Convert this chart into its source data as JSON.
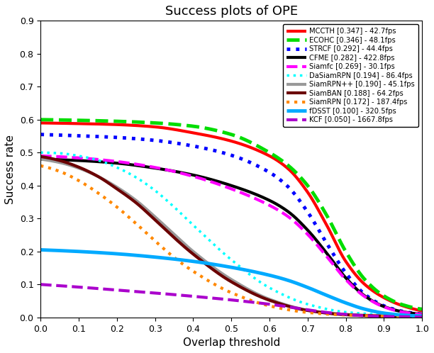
{
  "title": "Success plots of OPE",
  "xlabel": "Overlap threshold",
  "ylabel": "Success rate",
  "xlim": [
    0,
    1
  ],
  "ylim": [
    0,
    0.9
  ],
  "xticks": [
    0,
    0.1,
    0.2,
    0.3,
    0.4,
    0.5,
    0.6,
    0.7,
    0.8,
    0.9,
    1.0
  ],
  "yticks": [
    0,
    0.1,
    0.2,
    0.3,
    0.4,
    0.5,
    0.6,
    0.7,
    0.8,
    0.9
  ],
  "curves": [
    {
      "label": "MCCTH [0.347] - 42.7fps",
      "color": "#ff0000",
      "linestyle": "-",
      "linewidth": 3.0,
      "points_x": [
        0.0,
        0.1,
        0.2,
        0.3,
        0.4,
        0.5,
        0.6,
        0.65,
        0.7,
        0.75,
        0.8,
        0.85,
        0.9,
        0.95,
        1.0
      ],
      "points_y": [
        0.59,
        0.588,
        0.585,
        0.578,
        0.56,
        0.535,
        0.49,
        0.45,
        0.38,
        0.28,
        0.17,
        0.1,
        0.06,
        0.035,
        0.02
      ]
    },
    {
      "label": "ECOHC [0.346] - 48.1fps",
      "color": "#00dd00",
      "linestyle": "--",
      "linewidth": 3.5,
      "points_x": [
        0.0,
        0.1,
        0.2,
        0.3,
        0.4,
        0.5,
        0.6,
        0.65,
        0.7,
        0.75,
        0.8,
        0.85,
        0.9,
        0.95,
        1.0
      ],
      "points_y": [
        0.6,
        0.598,
        0.595,
        0.59,
        0.58,
        0.555,
        0.5,
        0.46,
        0.4,
        0.31,
        0.2,
        0.115,
        0.065,
        0.038,
        0.025
      ]
    },
    {
      "label": "STRCF [0.292] - 44.4fps",
      "color": "#0000ff",
      "linestyle": ":",
      "linewidth": 3.5,
      "points_x": [
        0.0,
        0.1,
        0.2,
        0.3,
        0.4,
        0.5,
        0.6,
        0.65,
        0.7,
        0.75,
        0.8,
        0.85,
        0.9,
        0.95,
        1.0
      ],
      "points_y": [
        0.555,
        0.551,
        0.546,
        0.537,
        0.52,
        0.492,
        0.44,
        0.395,
        0.32,
        0.225,
        0.135,
        0.07,
        0.035,
        0.018,
        0.01
      ]
    },
    {
      "label": "CFME [0.282] - 422.8fps",
      "color": "#000000",
      "linestyle": "-",
      "linewidth": 3.0,
      "points_x": [
        0.0,
        0.1,
        0.2,
        0.3,
        0.4,
        0.5,
        0.6,
        0.65,
        0.7,
        0.75,
        0.8,
        0.85,
        0.9,
        0.95,
        1.0
      ],
      "points_y": [
        0.48,
        0.476,
        0.468,
        0.453,
        0.432,
        0.4,
        0.355,
        0.32,
        0.265,
        0.195,
        0.12,
        0.065,
        0.033,
        0.017,
        0.01
      ]
    },
    {
      "label": "Siamfc [0.269] - 30.1fps",
      "color": "#ff00ff",
      "linestyle": "--",
      "linewidth": 3.0,
      "points_x": [
        0.0,
        0.1,
        0.2,
        0.3,
        0.4,
        0.5,
        0.6,
        0.65,
        0.7,
        0.75,
        0.8,
        0.85,
        0.9,
        0.95,
        1.0
      ],
      "points_y": [
        0.49,
        0.484,
        0.473,
        0.455,
        0.428,
        0.39,
        0.34,
        0.305,
        0.252,
        0.185,
        0.115,
        0.063,
        0.032,
        0.016,
        0.009
      ]
    },
    {
      "label": "DaSiamRPN [0.194] - 86.4fps",
      "color": "#00ffff",
      "linestyle": ":",
      "linewidth": 2.5,
      "points_x": [
        0.0,
        0.05,
        0.1,
        0.15,
        0.2,
        0.25,
        0.3,
        0.35,
        0.4,
        0.5,
        0.6,
        0.7,
        0.8,
        0.9,
        1.0
      ],
      "points_y": [
        0.5,
        0.498,
        0.49,
        0.477,
        0.455,
        0.425,
        0.385,
        0.335,
        0.28,
        0.175,
        0.09,
        0.04,
        0.016,
        0.008,
        0.005
      ]
    },
    {
      "label": "SiamRPN++ [0.190] - 45.1fps",
      "color": "#999999",
      "linestyle": "-",
      "linewidth": 3.0,
      "points_x": [
        0.0,
        0.05,
        0.1,
        0.15,
        0.2,
        0.25,
        0.3,
        0.35,
        0.4,
        0.5,
        0.6,
        0.7,
        0.8,
        0.9,
        1.0
      ],
      "points_y": [
        0.48,
        0.47,
        0.453,
        0.428,
        0.395,
        0.355,
        0.305,
        0.252,
        0.2,
        0.115,
        0.055,
        0.022,
        0.009,
        0.005,
        0.003
      ]
    },
    {
      "label": "SiamBAN [0.188] - 64.2fps",
      "color": "#6b0000",
      "linestyle": "-",
      "linewidth": 3.0,
      "points_x": [
        0.0,
        0.05,
        0.1,
        0.15,
        0.2,
        0.25,
        0.3,
        0.35,
        0.4,
        0.5,
        0.6,
        0.7,
        0.8,
        0.9,
        1.0
      ],
      "points_y": [
        0.488,
        0.476,
        0.456,
        0.428,
        0.39,
        0.348,
        0.296,
        0.242,
        0.192,
        0.108,
        0.052,
        0.021,
        0.008,
        0.004,
        0.002
      ]
    },
    {
      "label": "SiamRPN [0.172] - 187.4fps",
      "color": "#ff8800",
      "linestyle": ":",
      "linewidth": 3.0,
      "points_x": [
        0.0,
        0.05,
        0.1,
        0.15,
        0.2,
        0.25,
        0.3,
        0.35,
        0.4,
        0.5,
        0.6,
        0.7,
        0.8,
        0.9,
        1.0
      ],
      "points_y": [
        0.46,
        0.443,
        0.415,
        0.378,
        0.335,
        0.285,
        0.232,
        0.182,
        0.14,
        0.075,
        0.035,
        0.015,
        0.007,
        0.004,
        0.002
      ]
    },
    {
      "label": "fDSST [0.100] - 320.5fps",
      "color": "#00aaff",
      "linestyle": "-",
      "linewidth": 3.5,
      "points_x": [
        0.0,
        0.1,
        0.2,
        0.3,
        0.4,
        0.5,
        0.6,
        0.65,
        0.7,
        0.75,
        0.8,
        0.85,
        0.9,
        0.95,
        1.0
      ],
      "points_y": [
        0.205,
        0.2,
        0.193,
        0.183,
        0.17,
        0.152,
        0.128,
        0.112,
        0.091,
        0.067,
        0.044,
        0.025,
        0.013,
        0.007,
        0.004
      ]
    },
    {
      "label": "KCF [0.050] - 1667.8fps",
      "color": "#aa00cc",
      "linestyle": "--",
      "linewidth": 3.0,
      "points_x": [
        0.0,
        0.1,
        0.2,
        0.3,
        0.4,
        0.5,
        0.6,
        0.65,
        0.7,
        0.75,
        0.8,
        0.85,
        0.9,
        0.95,
        1.0
      ],
      "points_y": [
        0.1,
        0.092,
        0.083,
        0.074,
        0.064,
        0.053,
        0.04,
        0.032,
        0.023,
        0.015,
        0.009,
        0.005,
        0.003,
        0.002,
        0.001
      ]
    }
  ]
}
